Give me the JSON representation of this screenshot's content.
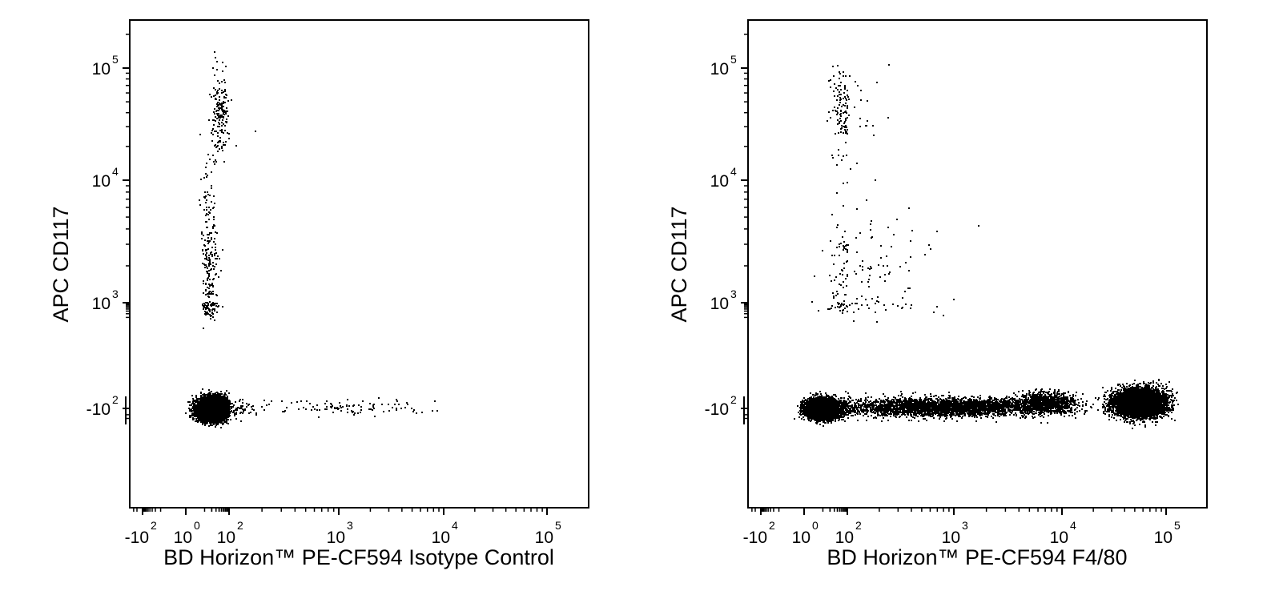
{
  "chart_data": [
    {
      "type": "scatter",
      "subtype": "flow-cytometry-dot-plot",
      "xlabel": "BD Horizon™ PE-CF594 Isotype Control",
      "ylabel": "APC CD117",
      "x_scale": "biexponential",
      "y_scale": "biexponential",
      "x_ticks": [
        {
          "base": "-10",
          "exp": "2",
          "value": -100
        },
        {
          "base": "10",
          "exp": "0",
          "value": 1
        },
        {
          "base": "10",
          "exp": "2",
          "value": 100
        },
        {
          "base": "10",
          "exp": "3",
          "value": 1000
        },
        {
          "base": "10",
          "exp": "4",
          "value": 10000
        },
        {
          "base": "10",
          "exp": "5",
          "value": 100000
        }
      ],
      "y_ticks": [
        {
          "base": "-10",
          "exp": "2",
          "value": -100
        },
        {
          "base": "10",
          "exp": "3",
          "value": 1000
        },
        {
          "base": "10",
          "exp": "4",
          "value": 10000
        },
        {
          "base": "10",
          "exp": "5",
          "value": 100000
        }
      ],
      "populations": [
        {
          "x_center": 20,
          "y_center": -100,
          "x_spread_decades": 0.5,
          "y_spread_decades": 0.45,
          "count": 9000
        },
        {
          "x_center": 40,
          "y_center": 40000,
          "x_spread_decades": 0.35,
          "y_spread_decades": 0.35,
          "count": 170
        },
        {
          "x_center": 15,
          "y_center": 2000,
          "x_spread_decades": 0.3,
          "y_spread_decades": 0.8,
          "count": 260
        },
        {
          "x_center": 1000,
          "y_center": -80,
          "x_spread_decades": 0.8,
          "y_spread_decades": 0.35,
          "count": 110
        }
      ]
    },
    {
      "type": "scatter",
      "subtype": "flow-cytometry-dot-plot",
      "xlabel": "BD Horizon™ PE-CF594 F4/80",
      "ylabel": "APC CD117",
      "x_scale": "biexponential",
      "y_scale": "biexponential",
      "x_ticks": [
        {
          "base": "-10",
          "exp": "2",
          "value": -100
        },
        {
          "base": "10",
          "exp": "0",
          "value": 1
        },
        {
          "base": "10",
          "exp": "2",
          "value": 100
        },
        {
          "base": "10",
          "exp": "3",
          "value": 1000
        },
        {
          "base": "10",
          "exp": "4",
          "value": 10000
        },
        {
          "base": "10",
          "exp": "5",
          "value": 100000
        }
      ],
      "y_ticks": [
        {
          "base": "-10",
          "exp": "2",
          "value": -100
        },
        {
          "base": "10",
          "exp": "3",
          "value": 1000
        },
        {
          "base": "10",
          "exp": "4",
          "value": 10000
        },
        {
          "base": "10",
          "exp": "5",
          "value": 100000
        }
      ],
      "populations": [
        {
          "x_center": 10,
          "y_center": -100,
          "x_spread_decades": 0.6,
          "y_spread_decades": 0.4,
          "count": 5500
        },
        {
          "x_center": 800,
          "y_center": -80,
          "x_spread_decades": 0.9,
          "y_spread_decades": 0.4,
          "count": 3200
        },
        {
          "x_center": 7000,
          "y_center": -50,
          "x_spread_decades": 0.25,
          "y_spread_decades": 0.45,
          "count": 900
        },
        {
          "x_center": 55000,
          "y_center": -50,
          "x_spread_decades": 0.22,
          "y_spread_decades": 0.6,
          "count": 5500
        },
        {
          "x_center": 60,
          "y_center": 40000,
          "x_spread_decades": 0.45,
          "y_spread_decades": 0.35,
          "count": 130
        },
        {
          "x_center": 100,
          "y_center": 1500,
          "x_spread_decades": 0.8,
          "y_spread_decades": 0.7,
          "count": 180
        }
      ]
    }
  ]
}
